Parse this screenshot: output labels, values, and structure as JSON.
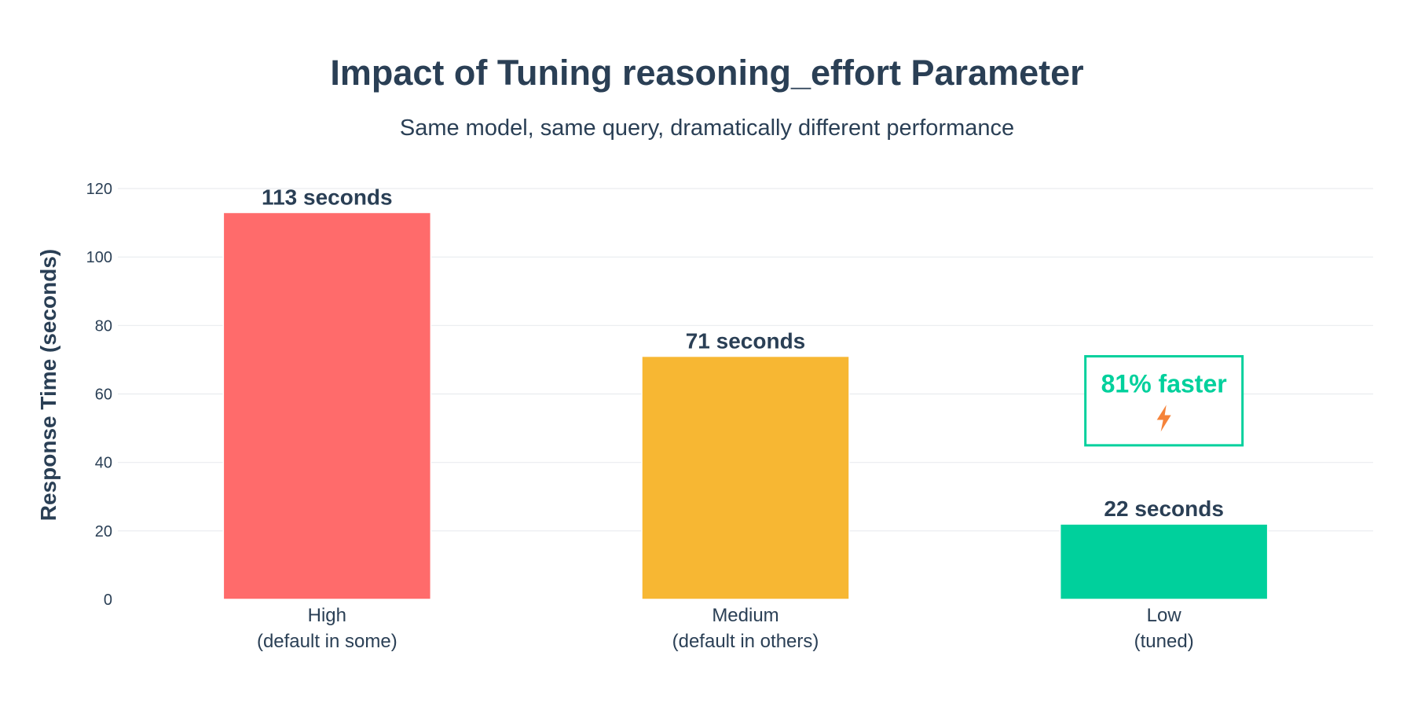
{
  "chart_data": {
    "type": "bar",
    "title": "Impact of Tuning reasoning_effort Parameter",
    "subtitle": "Same model, same query, dramatically different performance",
    "xlabel": "",
    "ylabel": "Response Time (seconds)",
    "ylim": [
      0,
      120
    ],
    "yticks": [
      0,
      20,
      40,
      60,
      80,
      100,
      120
    ],
    "grid": true,
    "categories": [
      [
        "High",
        "(default in some)"
      ],
      [
        "Medium",
        "(default in others)"
      ],
      [
        "Low",
        "(tuned)"
      ]
    ],
    "values": [
      113,
      71,
      22
    ],
    "data_labels": [
      "113 seconds",
      "71 seconds",
      "22 seconds"
    ],
    "colors": [
      "#ff6b6b",
      "#f7b733",
      "#00d09c"
    ],
    "annotation": {
      "text": "81% faster",
      "icon": "lightning-bolt-icon",
      "category_index": 2,
      "y_top": 71,
      "y_bottom": 45,
      "color": "#00d09c",
      "icon_color": "#f5833a"
    }
  }
}
